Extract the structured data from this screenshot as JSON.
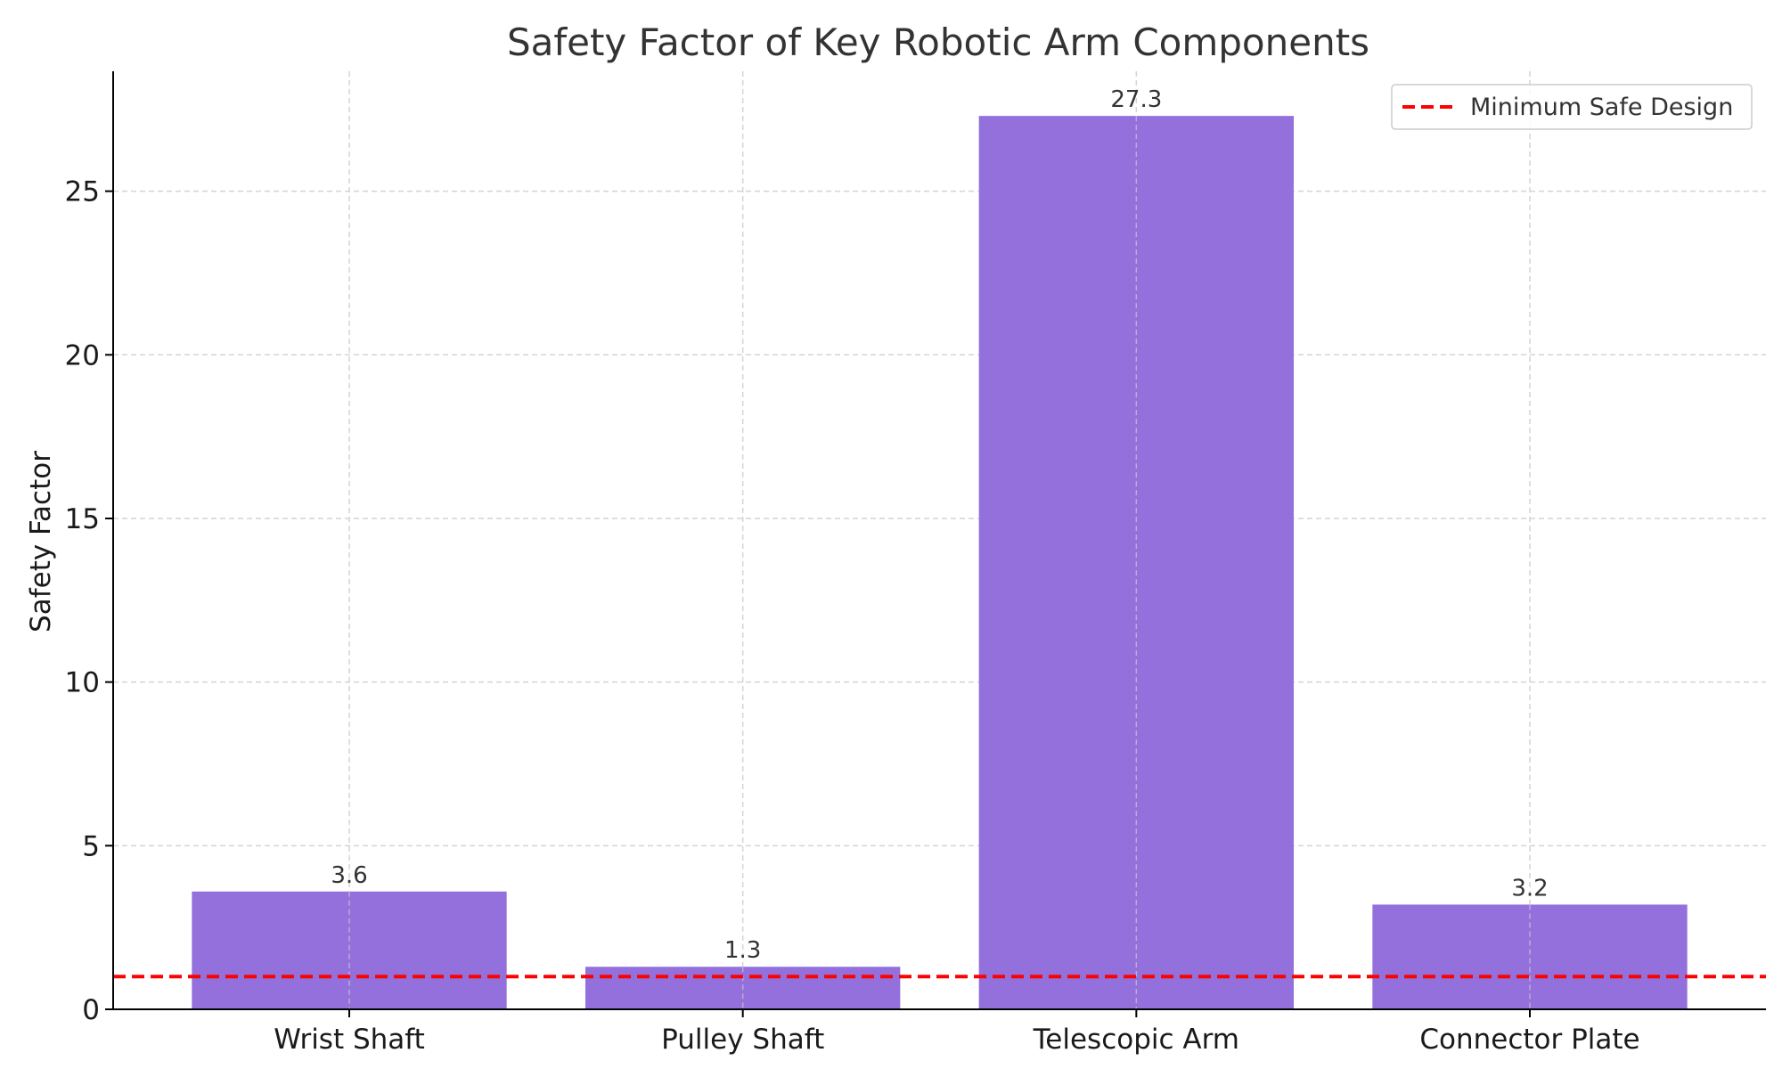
{
  "chart_data": {
    "type": "bar",
    "title": "Safety Factor of Key Robotic Arm Components",
    "xlabel": "",
    "ylabel": "Safety Factor",
    "categories": [
      "Wrist Shaft",
      "Pulley Shaft",
      "Telescopic Arm",
      "Connector Plate"
    ],
    "values": [
      3.6,
      1.3,
      27.3,
      3.2
    ],
    "data_labels": [
      "3.6",
      "1.3",
      "27.3",
      "3.2"
    ],
    "ylim": [
      0,
      28.665
    ],
    "yticks": [
      0,
      5,
      10,
      15,
      20,
      25
    ],
    "grid": true,
    "bar_color": "#9370DB",
    "reference_line": {
      "value": 1,
      "label": "Minimum Safe Design",
      "color": "#FF0000",
      "style": "dashed"
    },
    "legend_position": "top-right"
  }
}
